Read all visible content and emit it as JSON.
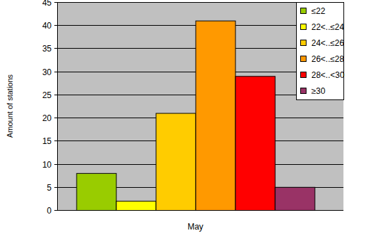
{
  "chart_data": {
    "type": "bar",
    "y_label": "Amount of stations",
    "categories": [
      "May"
    ],
    "series": [
      {
        "name": "≤22",
        "color": "#99cc00",
        "values": [
          8
        ]
      },
      {
        "name": "22<..≤24",
        "color": "#ffff00",
        "values": [
          2
        ]
      },
      {
        "name": "24<..≤26",
        "color": "#ffcc00",
        "values": [
          21
        ]
      },
      {
        "name": "26<..≤28",
        "color": "#ff9900",
        "values": [
          41
        ]
      },
      {
        "name": "28<..<30",
        "color": "#ff0000",
        "values": [
          29
        ]
      },
      {
        "name": "≥30",
        "color": "#993366",
        "values": [
          5
        ]
      }
    ],
    "ylim": [
      0,
      45
    ],
    "yticks": [
      0,
      5,
      10,
      15,
      20,
      25,
      30,
      35,
      40,
      45
    ],
    "grid": true,
    "legend": "top-right"
  }
}
